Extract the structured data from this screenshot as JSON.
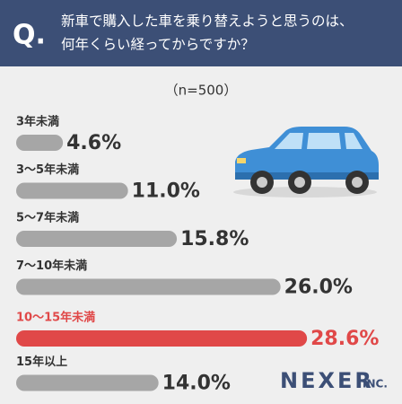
{
  "chart_data": {
    "type": "bar",
    "orientation": "horizontal",
    "q_label": "Q.",
    "title": [
      "新車で購入した車を乗り替えようと思うのは、",
      "何年くらい経ってからですか？"
    ],
    "subtitle": "（n=500）",
    "categories": [
      "3年未満",
      "3～5年未満",
      "5～7年未満",
      "7～10年未満",
      "10～15年未満",
      "15年以上"
    ],
    "values": [
      4.6,
      11.0,
      15.8,
      26.0,
      28.6,
      14.0
    ],
    "value_labels": [
      "4.6%",
      "11.0%",
      "15.8%",
      "26.0%",
      "28.6%",
      "14.0%"
    ],
    "colors": [
      "#a6a6a6",
      "#a6a6a6",
      "#a6a6a6",
      "#a6a6a6",
      "#e04848",
      "#a6a6a6"
    ],
    "xlim": [
      0,
      30
    ],
    "brand": {
      "name": "NEXER",
      "suffix": "INC."
    }
  }
}
